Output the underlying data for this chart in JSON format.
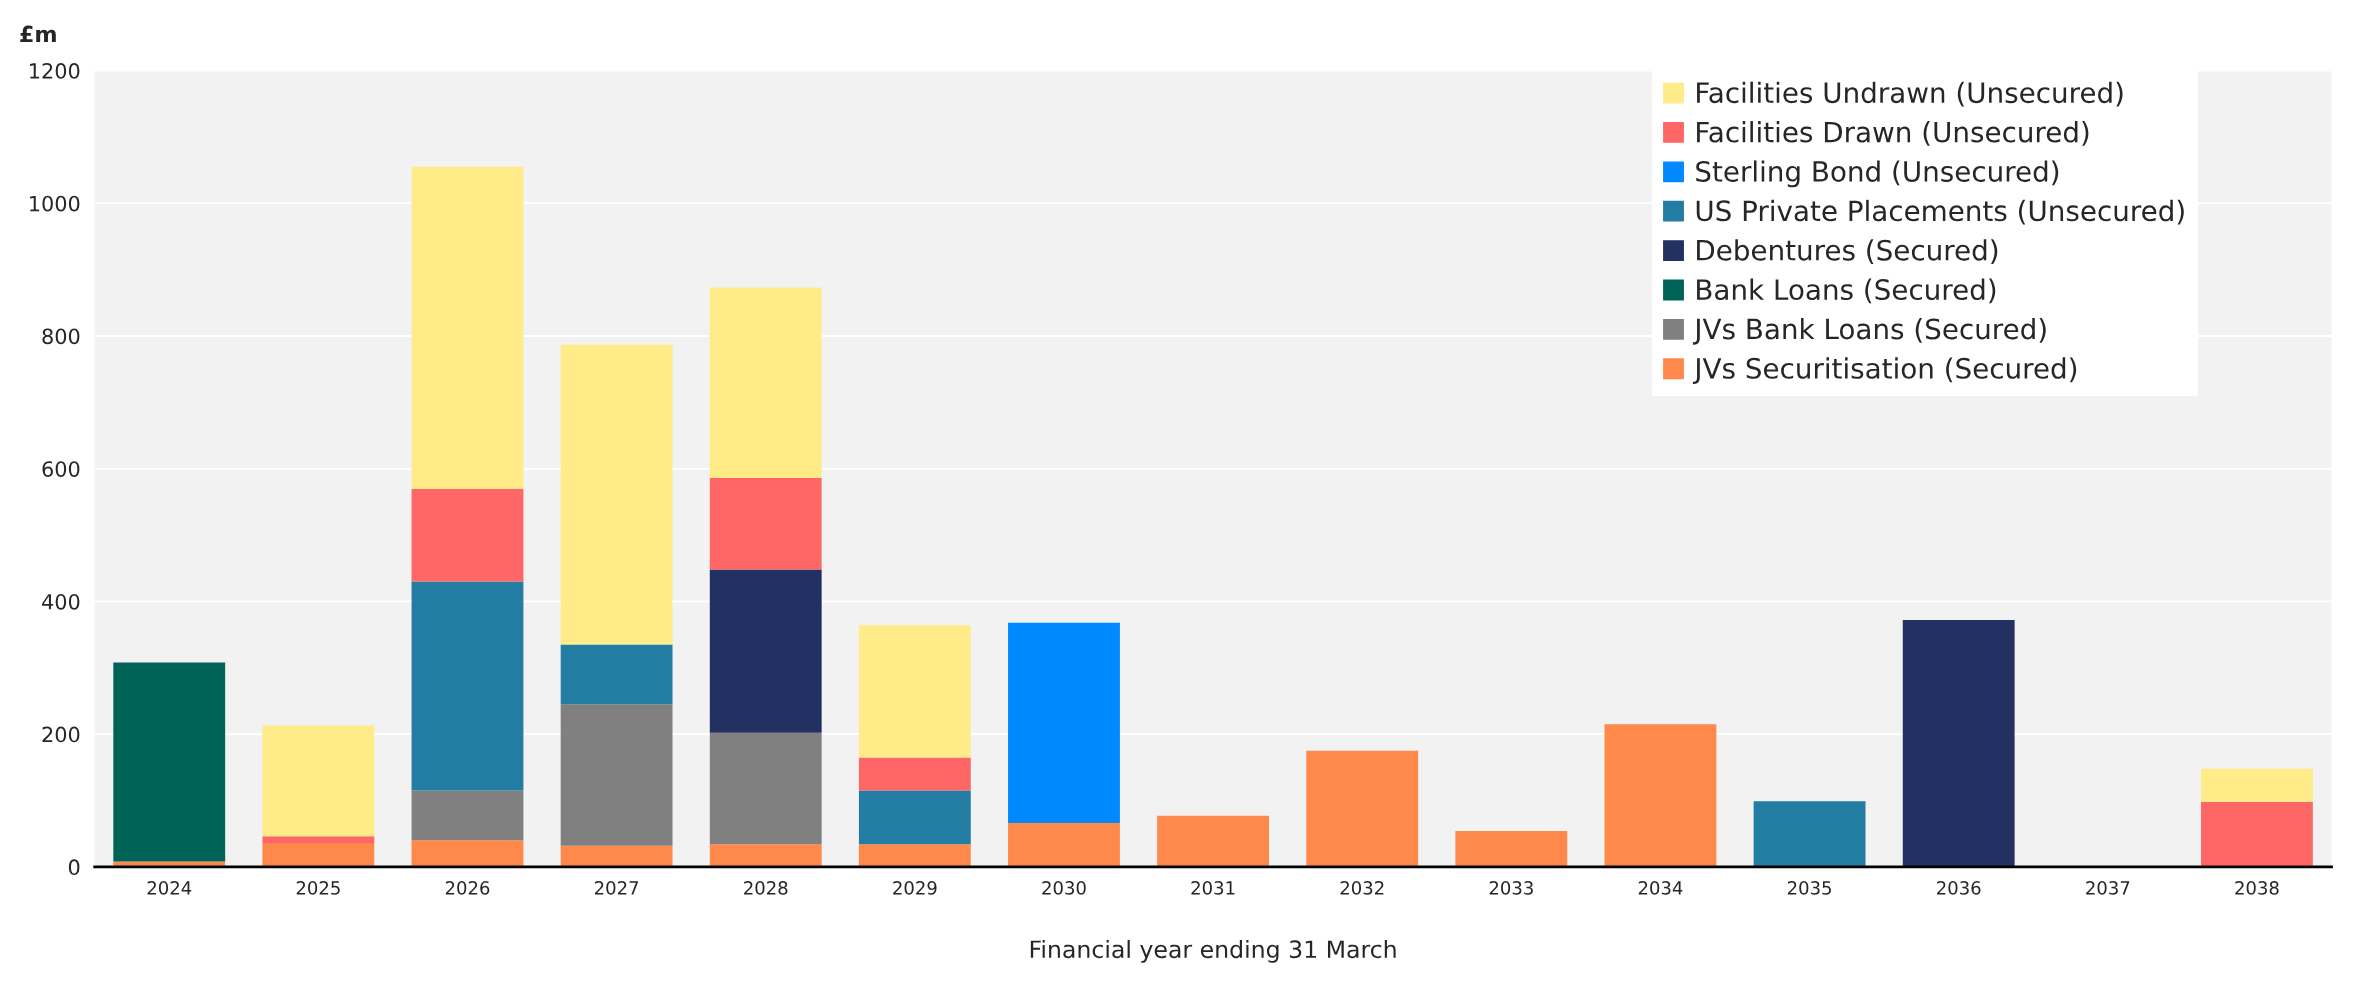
{
  "chart_data": {
    "type": "bar",
    "stacked": true,
    "ylabel": "£m",
    "xlabel": "Financial year ending 31 March",
    "categories": [
      "2024",
      "2025",
      "2026",
      "2027",
      "2028",
      "2029",
      "2030",
      "2031",
      "2032",
      "2033",
      "2034",
      "2035",
      "2036",
      "2037",
      "2038"
    ],
    "series": [
      {
        "name": "JVs Securitisation (Secured)",
        "color": "#ff884b",
        "values": [
          8,
          36,
          40,
          32,
          34,
          34,
          66,
          77,
          175,
          54,
          215,
          null,
          null,
          null,
          null
        ]
      },
      {
        "name": "JVs Bank Loans (Secured)",
        "color": "#808080",
        "values": [
          null,
          null,
          75,
          213,
          168,
          null,
          null,
          null,
          null,
          null,
          null,
          null,
          null,
          null,
          null
        ]
      },
      {
        "name": "Bank Loans (Secured)",
        "color": "#006358",
        "values": [
          300,
          null,
          null,
          null,
          null,
          null,
          null,
          null,
          null,
          null,
          null,
          null,
          null,
          null,
          null
        ]
      },
      {
        "name": "Debentures (Secured)",
        "color": "#223062",
        "values": [
          null,
          null,
          null,
          null,
          246,
          null,
          null,
          null,
          null,
          null,
          null,
          null,
          372,
          null,
          null
        ]
      },
      {
        "name": "US Private Placements (Unsecured)",
        "color": "#237da3",
        "values": [
          null,
          null,
          315,
          90,
          null,
          81,
          null,
          null,
          null,
          null,
          null,
          99,
          null,
          null,
          null
        ]
      },
      {
        "name": "Sterling Bond (Unsecured)",
        "color": "#0088ff",
        "values": [
          null,
          null,
          null,
          null,
          null,
          null,
          302,
          null,
          null,
          null,
          null,
          null,
          null,
          null,
          null
        ]
      },
      {
        "name": "Facilities Drawn (Unsecured)",
        "color": "#ff6666",
        "values": [
          null,
          10,
          140,
          null,
          138,
          50,
          null,
          null,
          null,
          null,
          null,
          null,
          null,
          null,
          98
        ]
      },
      {
        "name": "Facilities Undrawn (Unsecured)",
        "color": "#ffeb88",
        "values": [
          null,
          167,
          485,
          452,
          287,
          199,
          null,
          null,
          null,
          null,
          null,
          null,
          null,
          null,
          50
        ]
      }
    ],
    "ylim": [
      0,
      1200
    ],
    "yticks": [
      0,
      200,
      400,
      600,
      800,
      1000,
      1200
    ],
    "grid": "y",
    "legend": "top right"
  }
}
